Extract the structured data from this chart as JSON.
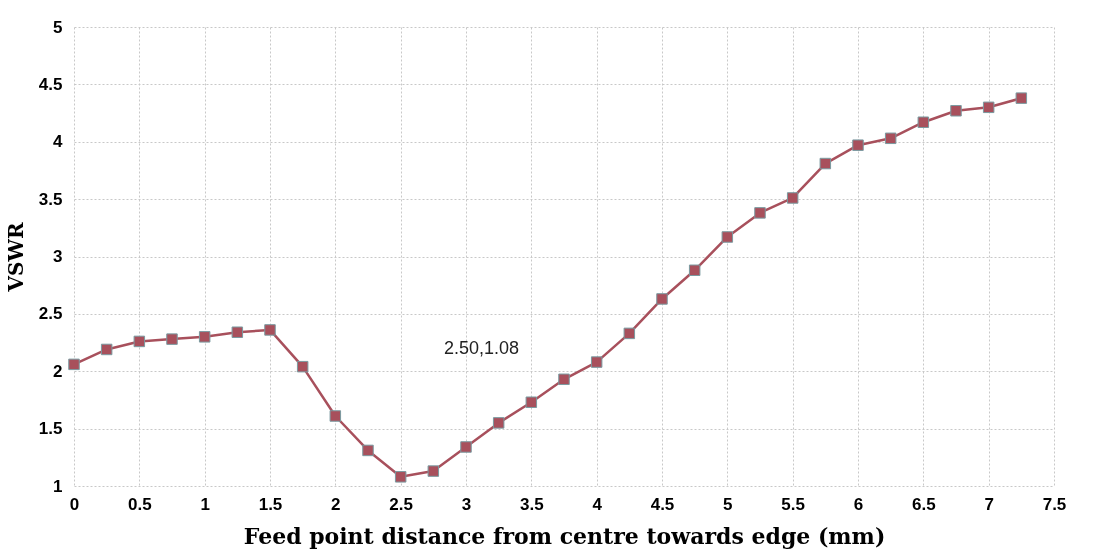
{
  "chart_data": {
    "type": "line",
    "xlabel": "Feed point distance from centre towards edge (mm)",
    "ylabel": "VSWR",
    "x": [
      0,
      0.25,
      0.5,
      0.75,
      1,
      1.25,
      1.5,
      1.75,
      2,
      2.25,
      2.5,
      2.75,
      3,
      3.25,
      3.5,
      3.75,
      4,
      4.25,
      4.5,
      4.75,
      5,
      5.25,
      5.5,
      5.75,
      6,
      6.25,
      6.5,
      6.75,
      7,
      7.25
    ],
    "series": [
      {
        "color": "#a8505c",
        "values": [
          2.06,
          2.19,
          2.26,
          2.28,
          2.3,
          2.34,
          2.36,
          2.04,
          1.61,
          1.31,
          1.08,
          1.13,
          1.34,
          1.55,
          1.73,
          1.93,
          2.08,
          2.33,
          2.63,
          2.88,
          3.17,
          3.38,
          3.51,
          3.81,
          3.97,
          4.03,
          4.17,
          4.27,
          4.3,
          4.38
        ]
      }
    ],
    "xlim": [
      0,
      7.5
    ],
    "xticks": [
      0,
      0.5,
      1,
      1.5,
      2,
      2.5,
      3,
      3.5,
      4,
      4.5,
      5,
      5.5,
      6,
      6.5,
      7,
      7.5
    ],
    "ylim": [
      1,
      5
    ],
    "yticks": [
      1,
      1.5,
      2,
      2.5,
      3,
      3.5,
      4,
      4.5,
      5
    ],
    "grid": true,
    "marker": "square",
    "line_style": "solid",
    "annotations": [
      "2.50,1.08"
    ]
  }
}
